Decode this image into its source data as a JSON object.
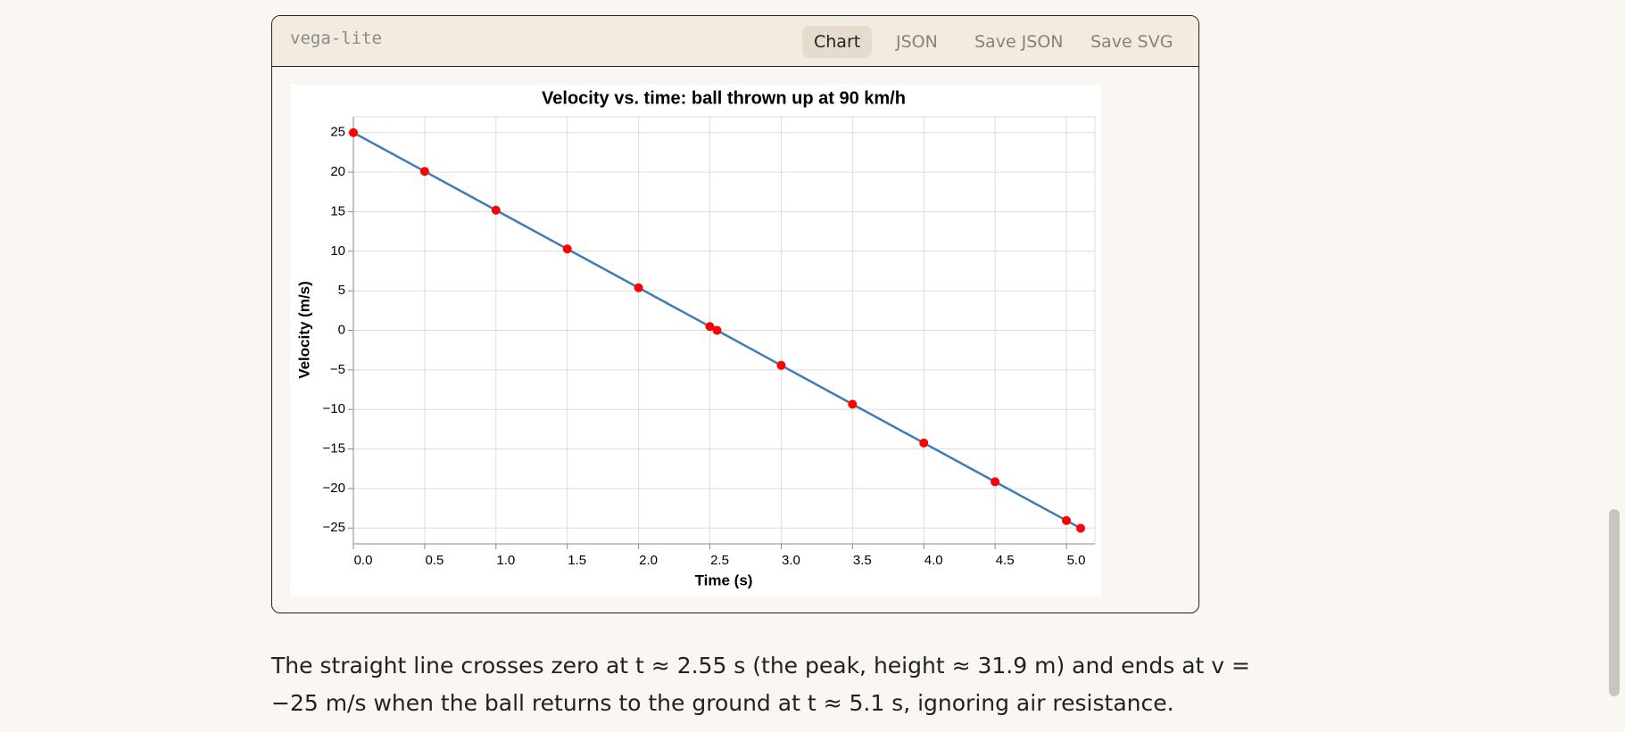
{
  "header": {
    "label": "vega-lite",
    "buttons": [
      "Chart",
      "JSON",
      "Save JSON",
      "Save SVG"
    ]
  },
  "chart_data": {
    "type": "line",
    "title": "Velocity vs. time: ball thrown up at 90 km/h",
    "x_label": "Time (s)",
    "y_label": "Velocity (m/s)",
    "x": [
      0,
      0.5,
      1,
      1.5,
      2,
      2.5,
      2.55,
      3,
      3.5,
      4,
      4.5,
      5,
      5.1
    ],
    "series": [
      {
        "name": "Velocity",
        "color": "#3f7db6",
        "point_color": "#ff0000",
        "values": [
          25,
          20.1,
          15.19,
          10.29,
          5.38,
          0.48,
          0,
          -4.43,
          -9.34,
          -14.24,
          -19.15,
          -24.05,
          -25.03
        ]
      }
    ],
    "xlim": [
      0,
      5.2
    ],
    "ylim": [
      -27,
      27
    ],
    "xticks": [
      {
        "value": 0,
        "label": "0.0"
      },
      0.5,
      {
        "value": 1,
        "label": "1.0"
      },
      1.5,
      {
        "value": 2,
        "label": "2.0"
      },
      2.5,
      {
        "value": 3,
        "label": "3.0"
      },
      3.5,
      {
        "value": 4,
        "label": "4.0"
      },
      4.5,
      {
        "value": 5,
        "label": "5.0"
      }
    ],
    "yticks": [
      {
        "value": -25,
        "label": "−25"
      },
      {
        "value": -20,
        "label": "−20"
      },
      {
        "value": -15,
        "label": "−15"
      },
      {
        "value": -10,
        "label": "−10"
      },
      {
        "value": -5,
        "label": "−5"
      },
      0,
      5,
      10,
      15,
      20,
      25
    ],
    "grid": true
  },
  "paragraph": {
    "lines": [
      "The straight line crosses zero at t ≈ 2.55 s (the peak, height ≈ 31.9 m) and ends at v =",
      "−25 m/s when the ball returns to the ground at t ≈ 5.1 s, ignoring air resistance."
    ]
  }
}
